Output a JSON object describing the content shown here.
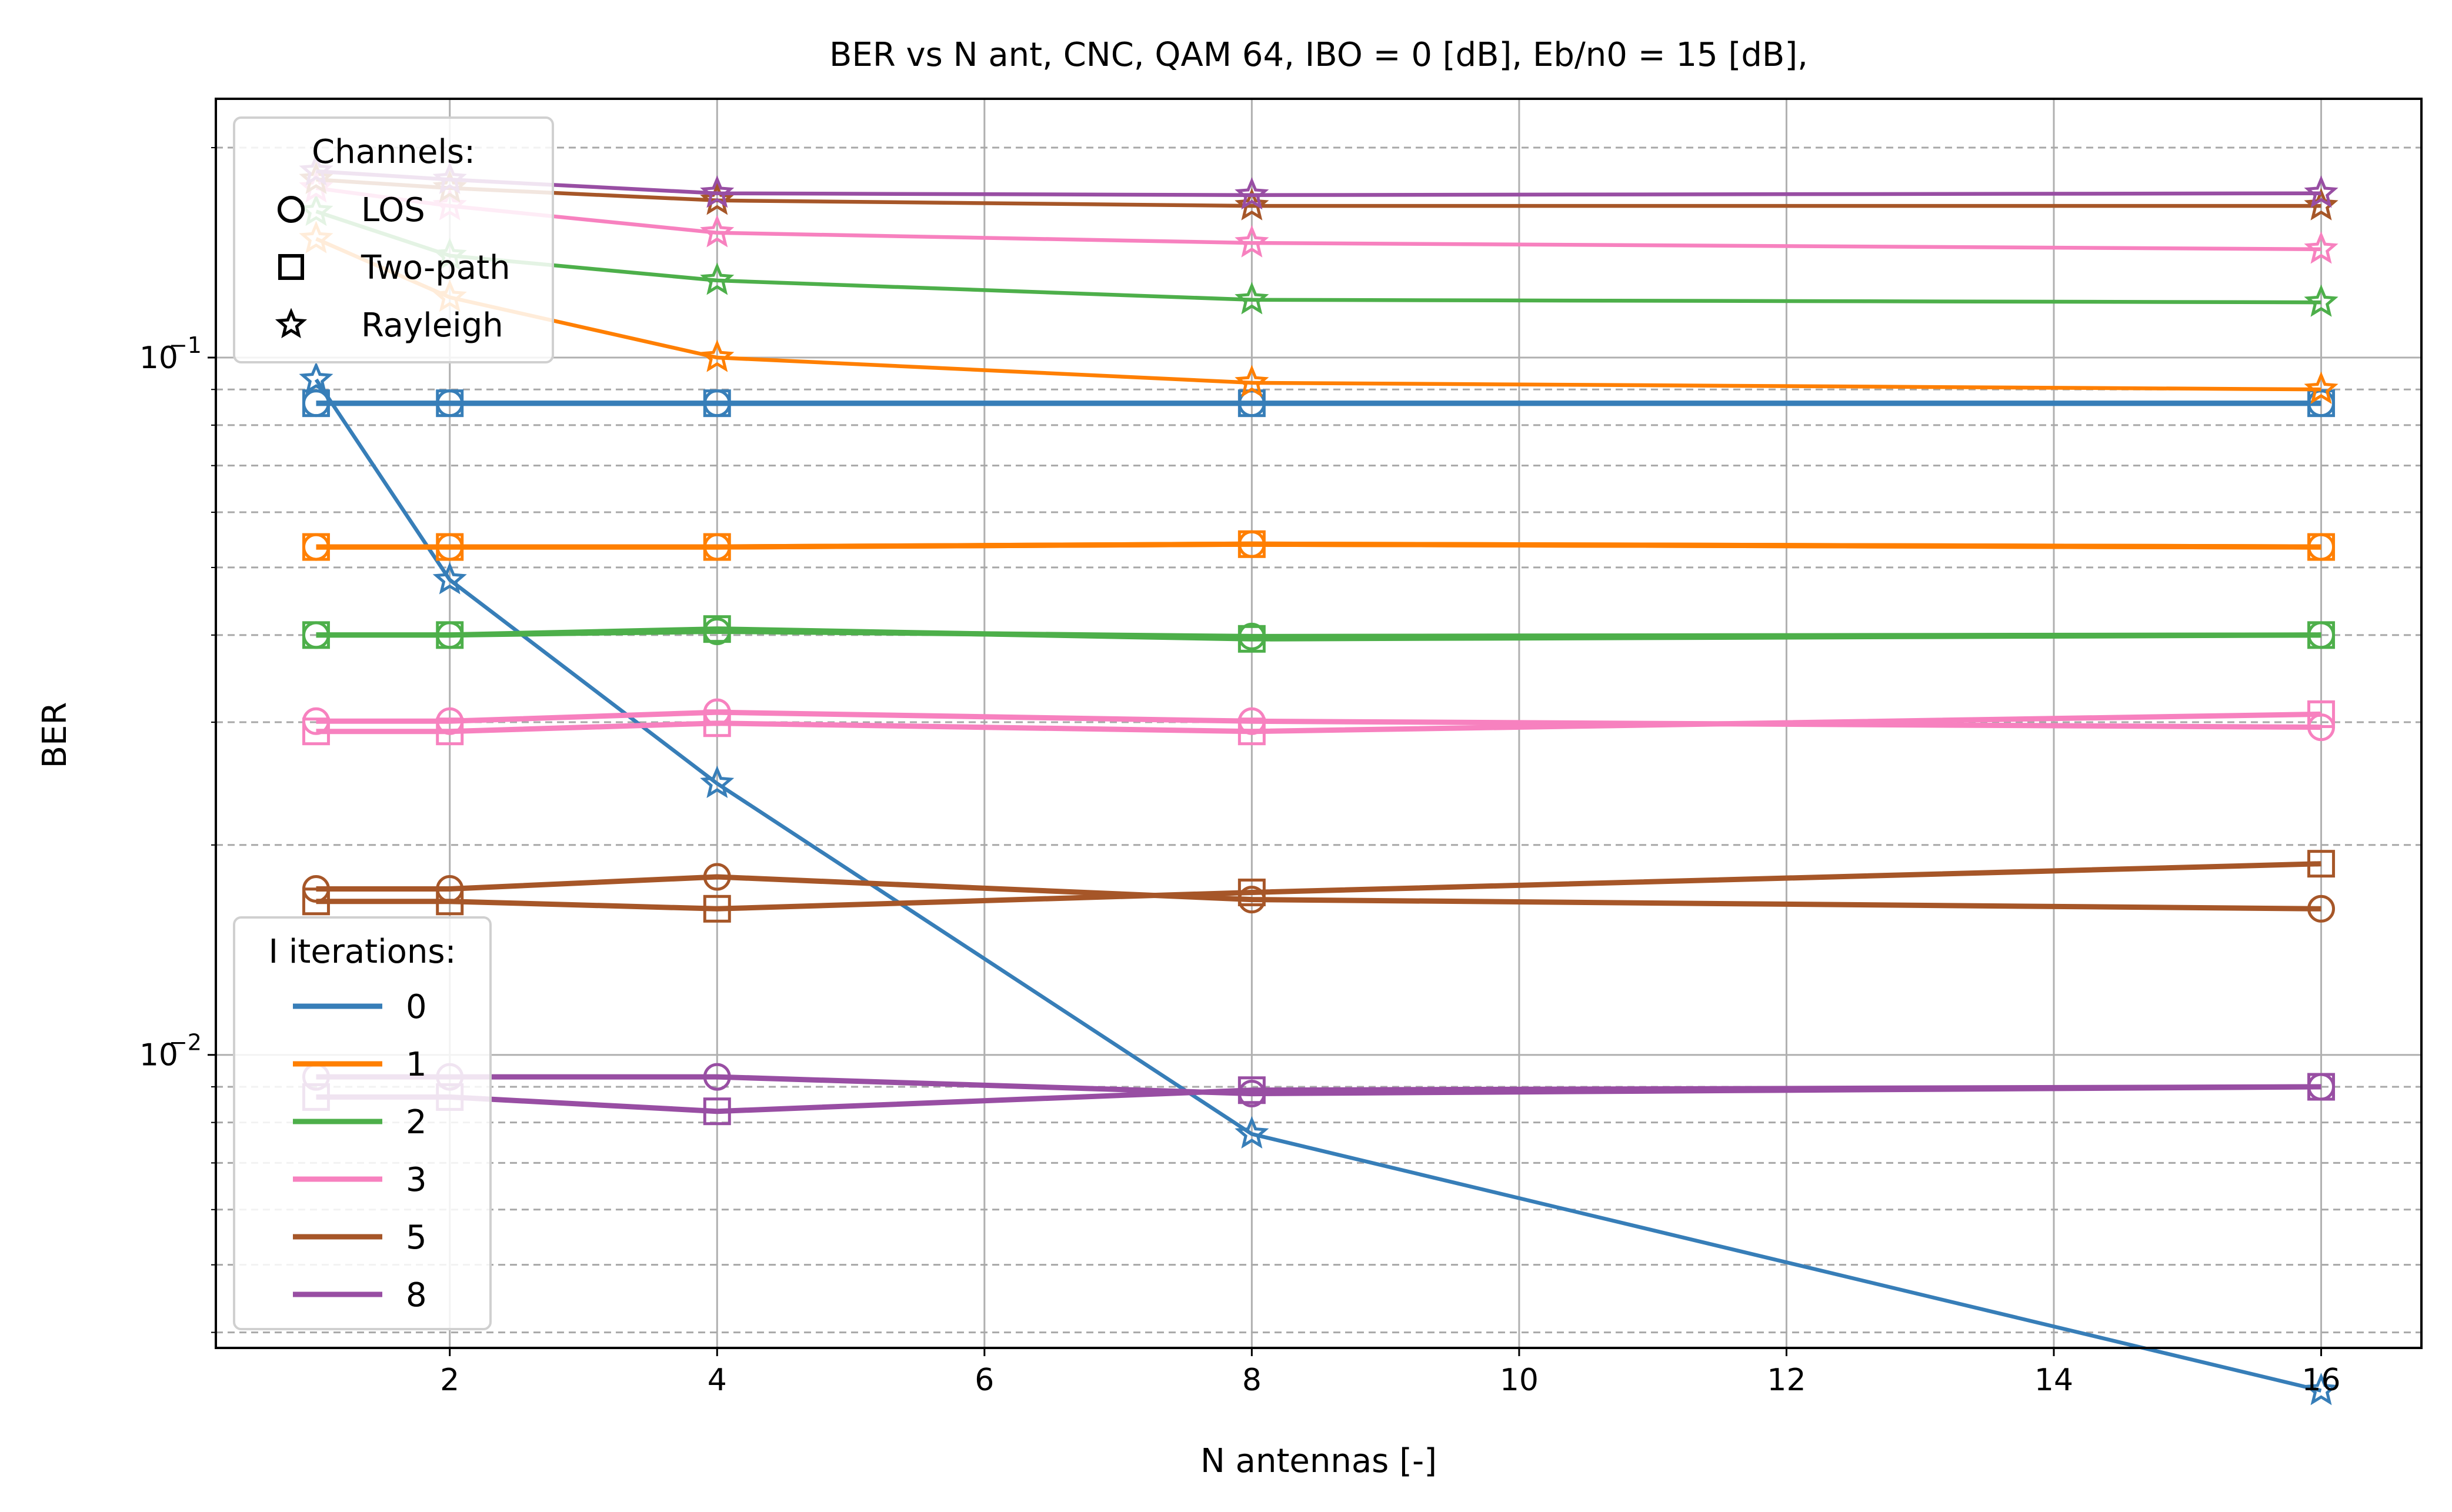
{
  "chart_data": {
    "type": "line",
    "title": "BER vs N ant, CNC, QAM 64, IBO = 0 [dB], Eb/n0 = 15 [dB],",
    "xlabel": "N antennas [-]",
    "ylabel": "BER",
    "xscale": "linear",
    "yscale": "log",
    "xlim": [
      0.25,
      16.75
    ],
    "ylim": [
      0.0038,
      0.235
    ],
    "xticks": [
      2,
      4,
      6,
      8,
      10,
      12,
      14,
      16
    ],
    "xtick_labels": [
      "2",
      "4",
      "6",
      "8",
      "10",
      "12",
      "14",
      "16"
    ],
    "yticks_major": [
      0.01,
      0.1
    ],
    "ytick_labels": [
      "10",
      "10"
    ],
    "ytick_exponents": [
      "−2",
      "−1"
    ],
    "grid": "major solid, minor y dashed",
    "x": [
      1,
      2,
      4,
      8,
      16
    ],
    "iteration_colors": {
      "0": "#377eb8",
      "1": "#ff7f00",
      "2": "#4daf4a",
      "3": "#f781bf",
      "5": "#a65628",
      "8": "#984ea3"
    },
    "series": [
      {
        "iterations": "0",
        "channel": "LOS",
        "marker": "circle",
        "values": [
          0.086,
          0.086,
          0.086,
          0.086,
          0.086
        ]
      },
      {
        "iterations": "0",
        "channel": "Two-path",
        "marker": "square",
        "values": [
          0.086,
          0.086,
          0.086,
          0.086,
          0.086
        ]
      },
      {
        "iterations": "0",
        "channel": "Rayleigh",
        "marker": "star",
        "values": [
          0.093,
          0.048,
          0.0245,
          0.0077,
          0.0033
        ]
      },
      {
        "iterations": "1",
        "channel": "LOS",
        "marker": "circle",
        "values": [
          0.0535,
          0.0535,
          0.0535,
          0.054,
          0.0535
        ]
      },
      {
        "iterations": "1",
        "channel": "Two-path",
        "marker": "square",
        "values": [
          0.0535,
          0.0535,
          0.0535,
          0.054,
          0.0535
        ]
      },
      {
        "iterations": "1",
        "channel": "Rayleigh",
        "marker": "star",
        "values": [
          0.148,
          0.122,
          0.1,
          0.092,
          0.09
        ]
      },
      {
        "iterations": "2",
        "channel": "LOS",
        "marker": "circle",
        "values": [
          0.04,
          0.04,
          0.0405,
          0.0398,
          0.04
        ]
      },
      {
        "iterations": "2",
        "channel": "Two-path",
        "marker": "square",
        "values": [
          0.04,
          0.04,
          0.0408,
          0.0395,
          0.04
        ]
      },
      {
        "iterations": "2",
        "channel": "Rayleigh",
        "marker": "star",
        "values": [
          0.162,
          0.14,
          0.129,
          0.121,
          0.12
        ]
      },
      {
        "iterations": "3",
        "channel": "LOS",
        "marker": "circle",
        "values": [
          0.0301,
          0.0301,
          0.031,
          0.0301,
          0.0295
        ]
      },
      {
        "iterations": "3",
        "channel": "Two-path",
        "marker": "square",
        "values": [
          0.0291,
          0.0291,
          0.0299,
          0.0291,
          0.0308
        ]
      },
      {
        "iterations": "3",
        "channel": "Rayleigh",
        "marker": "star",
        "values": [
          0.175,
          0.165,
          0.151,
          0.146,
          0.143
        ]
      },
      {
        "iterations": "5",
        "channel": "LOS",
        "marker": "circle",
        "values": [
          0.0173,
          0.0173,
          0.018,
          0.0167,
          0.0162
        ]
      },
      {
        "iterations": "5",
        "channel": "Two-path",
        "marker": "square",
        "values": [
          0.0166,
          0.0166,
          0.0162,
          0.0171,
          0.0188
        ]
      },
      {
        "iterations": "5",
        "channel": "Rayleigh",
        "marker": "star",
        "values": [
          0.18,
          0.175,
          0.168,
          0.165,
          0.165
        ]
      },
      {
        "iterations": "8",
        "channel": "LOS",
        "marker": "circle",
        "values": [
          0.0093,
          0.0093,
          0.0093,
          0.0088,
          0.009
        ]
      },
      {
        "iterations": "8",
        "channel": "Two-path",
        "marker": "square",
        "values": [
          0.0087,
          0.0087,
          0.0083,
          0.0089,
          0.009
        ]
      },
      {
        "iterations": "8",
        "channel": "Rayleigh",
        "marker": "star",
        "values": [
          0.185,
          0.18,
          0.172,
          0.171,
          0.172
        ]
      }
    ],
    "legend_channels": {
      "title": "Channels:",
      "placement": "upper-left",
      "entries": [
        {
          "label": "LOS",
          "marker": "circle"
        },
        {
          "label": "Two-path",
          "marker": "square"
        },
        {
          "label": "Rayleigh",
          "marker": "star"
        }
      ]
    },
    "legend_iterations": {
      "title": "I iterations:",
      "placement": "lower-left",
      "entries": [
        {
          "label": "0",
          "color": "#377eb8"
        },
        {
          "label": "1",
          "color": "#ff7f00"
        },
        {
          "label": "2",
          "color": "#4daf4a"
        },
        {
          "label": "3",
          "color": "#f781bf"
        },
        {
          "label": "5",
          "color": "#a65628"
        },
        {
          "label": "8",
          "color": "#984ea3"
        }
      ]
    }
  }
}
